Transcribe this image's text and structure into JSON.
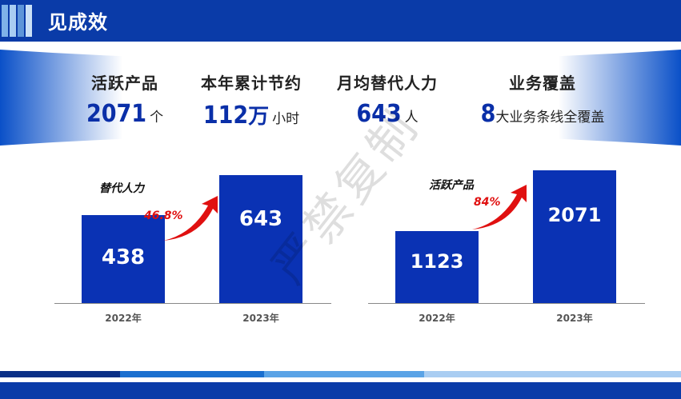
{
  "header": {
    "title": "见成效"
  },
  "stats": [
    {
      "label": "活跃产品",
      "value": "2071",
      "unit_big": "",
      "unit": "个"
    },
    {
      "label": "本年累计节约",
      "value": "112",
      "unit_big": "万",
      "unit": "小时"
    },
    {
      "label": "月均替代人力",
      "value": "643",
      "unit_big": "",
      "unit": "人"
    },
    {
      "label": "业务覆盖",
      "value": "8",
      "unit_big": "",
      "unit": "大业务条线全覆盖"
    }
  ],
  "watermark": "严禁复制",
  "colors": {
    "brand": "#0a3ba8",
    "bar": "#0a32b4",
    "arrow": "#e01010"
  },
  "chart_data": [
    {
      "type": "bar",
      "title": "替代人力",
      "categories": [
        "2022年",
        "2023年"
      ],
      "values": [
        438,
        643
      ],
      "growth_label": "46.8%"
    },
    {
      "type": "bar",
      "title": "活跃产品",
      "categories": [
        "2022年",
        "2023年"
      ],
      "values": [
        1123,
        2071
      ],
      "growth_label": "84%"
    }
  ]
}
